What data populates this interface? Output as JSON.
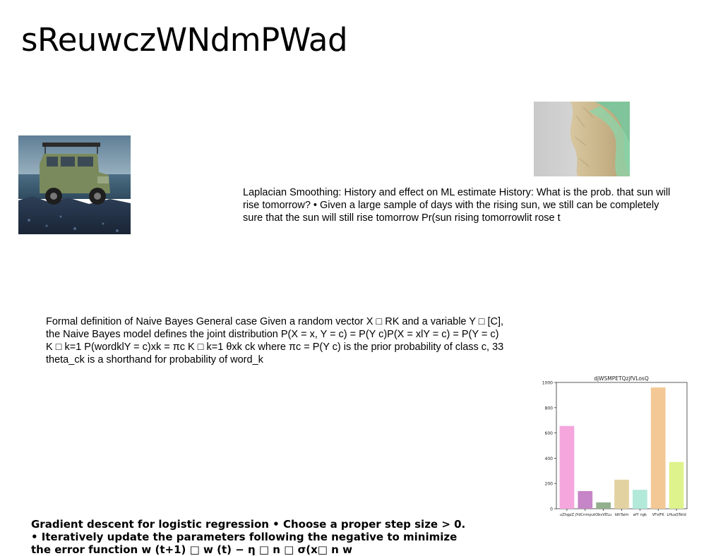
{
  "slide": {
    "title": "sReuwczWNdmPWad"
  },
  "images": {
    "jeep": "green vintage off-road vehicle on coastal rocks",
    "fur": "tan and green fur closeup"
  },
  "text_blocks": {
    "laplace": "Laplacian Smoothing: History and effect on ML estimate History: What is the prob. that sun will rise tomorrow? • Given a large sample of days with the rising sun, we still can be completely sure that the sun will still rise tomorrow Pr(sun rising tomorrowlit rose t",
    "bayes": "Formal definition of Naive Bayes General case Given a random vector X □ RK and a variable Y □ [C], the Naive Bayes model defines the joint distribution P(X = x, Y = c) = P(Y c)P(X = xlY = c) = P(Y = c) K □ k=1 P(wordklY = c)xk = πc K □ k=1 θxk ck where πc = P(Y c) is the prior probability of class c, 33 theta_ck is a shorthand for probability of word_k",
    "gradient": "Gradient descent for logistic regression • Choose a proper step size > 0. • Iteratively update the parameters following the negative to minimize the error function w (t+1) □ w (t) − η □ n □ σ(x□ n w"
  },
  "chart_data": {
    "type": "bar",
    "title": "djWSMPETQzjfVLosQ",
    "categories": [
      "uZhgpZ",
      "jYdCnmput",
      "ObvVELu",
      "ldhTaim",
      "afY ngk",
      "VFsIFK",
      "LHuaSTetd"
    ],
    "values": [
      655,
      140,
      50,
      230,
      150,
      960,
      370
    ],
    "colors": [
      "#f4a6dd",
      "#c685c6",
      "#93b08c",
      "#e3d2a1",
      "#b3e9d9",
      "#f3c895",
      "#def38c"
    ],
    "ylim": [
      0,
      1000
    ],
    "yticks": [
      0,
      200,
      400,
      600,
      800,
      1000
    ],
    "xlabel": "",
    "ylabel": "",
    "grid": false
  }
}
